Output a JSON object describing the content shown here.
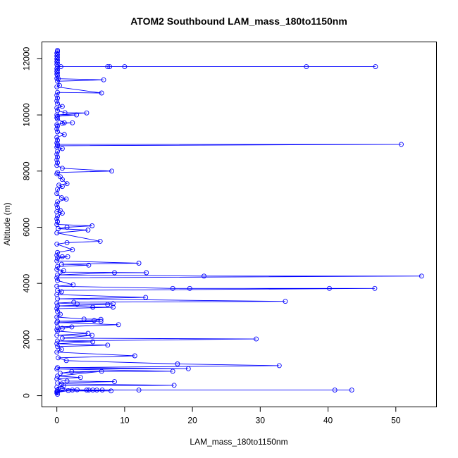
{
  "chart_data": {
    "type": "line",
    "title": "ATOM2 Southbound LAM_mass_180to1150nm",
    "xlabel": "LAM_mass_180to1150nm",
    "ylabel": "Altitude (m)",
    "xlim": [
      -2.2,
      56
    ],
    "ylim": [
      -400,
      12600
    ],
    "xticks": [
      0,
      10,
      20,
      30,
      40,
      50
    ],
    "yticks": [
      0,
      2000,
      4000,
      6000,
      8000,
      10000,
      12000
    ],
    "grid": false,
    "legend": "none",
    "color": "#0000ff",
    "series": [
      {
        "points": [
          [
            0.1,
            12300
          ],
          [
            0.1,
            12250
          ],
          [
            0.0,
            12200
          ],
          [
            0.1,
            12150
          ],
          [
            0.0,
            12100
          ],
          [
            0.1,
            12050
          ],
          [
            0.0,
            12000
          ],
          [
            0.1,
            11950
          ],
          [
            0.0,
            11900
          ],
          [
            0.1,
            11850
          ],
          [
            0.0,
            11800
          ],
          [
            0.6,
            11720
          ],
          [
            7.5,
            11720
          ],
          [
            7.8,
            11720
          ],
          [
            10.0,
            11720
          ],
          [
            36.8,
            11720
          ],
          [
            47.0,
            11720
          ],
          [
            0.1,
            11720
          ],
          [
            0.0,
            11650
          ],
          [
            0.1,
            11600
          ],
          [
            0.0,
            11550
          ],
          [
            0.1,
            11500
          ],
          [
            0.0,
            11450
          ],
          [
            0.1,
            11400
          ],
          [
            0.0,
            11300
          ],
          [
            0.2,
            11290
          ],
          [
            6.9,
            11250
          ],
          [
            0.1,
            11200
          ],
          [
            0.4,
            11050
          ],
          [
            0.0,
            11000
          ],
          [
            6.6,
            10780
          ],
          [
            0.1,
            10800
          ],
          [
            0.0,
            10700
          ],
          [
            0.1,
            10600
          ],
          [
            0.0,
            10500
          ],
          [
            0.1,
            10400
          ],
          [
            0.8,
            10300
          ],
          [
            0.0,
            10250
          ],
          [
            0.1,
            10150
          ],
          [
            1.2,
            10080
          ],
          [
            4.4,
            10070
          ],
          [
            0.0,
            10000
          ],
          [
            2.9,
            10000
          ],
          [
            0.1,
            9950
          ],
          [
            0.0,
            9900
          ],
          [
            0.1,
            9850
          ],
          [
            1.1,
            9720
          ],
          [
            2.3,
            9720
          ],
          [
            0.8,
            9700
          ],
          [
            0.0,
            9650
          ],
          [
            0.1,
            9600
          ],
          [
            0.0,
            9500
          ],
          [
            0.1,
            9400
          ],
          [
            1.1,
            9300
          ],
          [
            0.0,
            9200
          ],
          [
            0.1,
            9100
          ],
          [
            0.0,
            9000
          ],
          [
            0.1,
            8950
          ],
          [
            50.8,
            8950
          ],
          [
            0.1,
            8900
          ],
          [
            0.0,
            8850
          ],
          [
            0.8,
            8800
          ],
          [
            0.1,
            8700
          ],
          [
            0.0,
            8600
          ],
          [
            0.1,
            8500
          ],
          [
            0.0,
            8400
          ],
          [
            0.1,
            8300
          ],
          [
            0.0,
            8200
          ],
          [
            0.8,
            8100
          ],
          [
            8.1,
            8000
          ],
          [
            0.1,
            7950
          ],
          [
            0.0,
            7900
          ],
          [
            0.5,
            7800
          ],
          [
            0.8,
            7700
          ],
          [
            1.5,
            7550
          ],
          [
            0.3,
            7500
          ],
          [
            0.8,
            7450
          ],
          [
            0.1,
            7350
          ],
          [
            0.0,
            7200
          ],
          [
            0.7,
            7050
          ],
          [
            1.4,
            7000
          ],
          [
            0.1,
            6900
          ],
          [
            0.0,
            6800
          ],
          [
            0.1,
            6700
          ],
          [
            0.5,
            6600
          ],
          [
            0.0,
            6550
          ],
          [
            0.8,
            6500
          ],
          [
            0.1,
            6400
          ],
          [
            0.0,
            6300
          ],
          [
            0.1,
            6200
          ],
          [
            0.0,
            6100
          ],
          [
            5.2,
            6050
          ],
          [
            1.5,
            6000
          ],
          [
            0.2,
            5950
          ],
          [
            4.6,
            5900
          ],
          [
            0.0,
            5800
          ],
          [
            6.4,
            5500
          ],
          [
            1.5,
            5450
          ],
          [
            0.0,
            5400
          ],
          [
            2.3,
            5200
          ],
          [
            0.1,
            5100
          ],
          [
            0.0,
            5000
          ],
          [
            0.8,
            4950
          ],
          [
            1.6,
            4950
          ],
          [
            0.1,
            4900
          ],
          [
            0.0,
            4800
          ],
          [
            12.1,
            4720
          ],
          [
            0.7,
            4680
          ],
          [
            4.7,
            4650
          ],
          [
            0.1,
            4600
          ],
          [
            0.0,
            4500
          ],
          [
            1.0,
            4450
          ],
          [
            0.5,
            4400
          ],
          [
            13.2,
            4380
          ],
          [
            8.5,
            4380
          ],
          [
            0.1,
            4300
          ],
          [
            21.7,
            4260
          ],
          [
            53.8,
            4260
          ],
          [
            0.0,
            4200
          ],
          [
            0.1,
            4100
          ],
          [
            2.4,
            3950
          ],
          [
            0.0,
            3900
          ],
          [
            17.1,
            3820
          ],
          [
            19.6,
            3820
          ],
          [
            40.2,
            3820
          ],
          [
            46.9,
            3820
          ],
          [
            0.1,
            3750
          ],
          [
            0.7,
            3700
          ],
          [
            0.0,
            3600
          ],
          [
            13.1,
            3500
          ],
          [
            0.1,
            3450
          ],
          [
            33.7,
            3360
          ],
          [
            2.5,
            3330
          ],
          [
            0.0,
            3300
          ],
          [
            3.0,
            3270
          ],
          [
            8.3,
            3280
          ],
          [
            7.5,
            3250
          ],
          [
            0.1,
            3200
          ],
          [
            5.3,
            3150
          ],
          [
            8.3,
            3150
          ],
          [
            0.0,
            3100
          ],
          [
            0.1,
            3000
          ],
          [
            0.5,
            2900
          ],
          [
            0.0,
            2800
          ],
          [
            4.0,
            2730
          ],
          [
            6.5,
            2720
          ],
          [
            5.5,
            2680
          ],
          [
            0.1,
            2650
          ],
          [
            6.5,
            2650
          ],
          [
            0.0,
            2600
          ],
          [
            9.1,
            2530
          ],
          [
            0.1,
            2450
          ],
          [
            2.2,
            2450
          ],
          [
            0.8,
            2400
          ],
          [
            0.0,
            2350
          ],
          [
            0.1,
            2300
          ],
          [
            4.6,
            2220
          ],
          [
            0.0,
            2150
          ],
          [
            5.2,
            2150
          ],
          [
            0.8,
            2050
          ],
          [
            29.4,
            2020
          ],
          [
            0.1,
            1950
          ],
          [
            5.3,
            1920
          ],
          [
            0.0,
            1850
          ],
          [
            7.5,
            1800
          ],
          [
            0.1,
            1750
          ],
          [
            0.7,
            1650
          ],
          [
            0.0,
            1550
          ],
          [
            11.5,
            1420
          ],
          [
            0.2,
            1350
          ],
          [
            1.4,
            1250
          ],
          [
            17.8,
            1130
          ],
          [
            32.8,
            1070
          ],
          [
            0.1,
            1000
          ],
          [
            19.4,
            960
          ],
          [
            0.0,
            950
          ],
          [
            17.1,
            870
          ],
          [
            2.2,
            860
          ],
          [
            0.5,
            800
          ],
          [
            6.6,
            870
          ],
          [
            0.1,
            700
          ],
          [
            3.5,
            650
          ],
          [
            0.0,
            600
          ],
          [
            1.5,
            520
          ],
          [
            8.5,
            500
          ],
          [
            0.1,
            450
          ],
          [
            0.7,
            420
          ],
          [
            17.3,
            370
          ],
          [
            1.0,
            350
          ],
          [
            0.0,
            300
          ],
          [
            0.8,
            250
          ],
          [
            3.0,
            210
          ],
          [
            12.1,
            200
          ],
          [
            0.1,
            200
          ],
          [
            41.0,
            200
          ],
          [
            43.5,
            200
          ],
          [
            5.9,
            200
          ],
          [
            5.3,
            200
          ],
          [
            6.7,
            200
          ],
          [
            4.4,
            200
          ],
          [
            4.7,
            200
          ],
          [
            2.3,
            200
          ],
          [
            8.0,
            170
          ],
          [
            0.1,
            170
          ],
          [
            0.0,
            150
          ],
          [
            1.7,
            180
          ],
          [
            0.1,
            120
          ],
          [
            0.0,
            100
          ],
          [
            0.1,
            50
          ]
        ]
      }
    ]
  }
}
